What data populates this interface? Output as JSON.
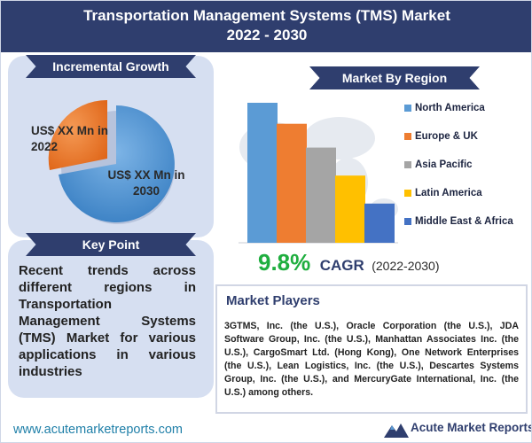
{
  "header": {
    "title_line1": "Transportation Management Systems (TMS) Market",
    "title_line2": "2022 - 2030"
  },
  "incremental_growth": {
    "label": "Incremental Growth",
    "pie_2022_label": "US$ XX Mn in 2022",
    "pie_2030_label": "US$ XX Mn in 2030",
    "color_2022": "#ee7d31",
    "color_2030": "#5b9bd5"
  },
  "key_point": {
    "label": "Key Point",
    "text": "Recent trends across different regions in Transportation Management Systems (TMS) Market for various applications in various industries"
  },
  "market_by_region": {
    "label": "Market By Region"
  },
  "chart_data": {
    "type": "bar",
    "categories": [
      "North America",
      "Europe & UK",
      "Asia Pacific",
      "Latin America",
      "Middle East & Africa"
    ],
    "values": [
      100,
      85,
      68,
      48,
      28
    ],
    "colors": [
      "#5b9bd5",
      "#ee7d31",
      "#a5a5a5",
      "#ffc000",
      "#4472c4"
    ],
    "legend_position": "right",
    "ylim": [
      0,
      100
    ]
  },
  "cagr": {
    "value": "9.8%",
    "label": "CAGR",
    "period": "(2022-2030)"
  },
  "market_players": {
    "title": "Market Players",
    "text": "3GTMS, Inc. (the U.S.), Oracle Corporation (the U.S.), JDA Software Group, Inc. (the U.S.), Manhattan Associates Inc. (the U.S.), CargoSmart Ltd. (Hong Kong), One Network Enterprises (the U.S.), Lean Logistics, Inc. (the U.S.), Descartes Systems Group, Inc. (the U.S.), and MercuryGate International, Inc. (the U.S.) among others."
  },
  "footer": {
    "url": "www.acutemarketreports.com",
    "logo_text": "Acute Market Reports"
  }
}
